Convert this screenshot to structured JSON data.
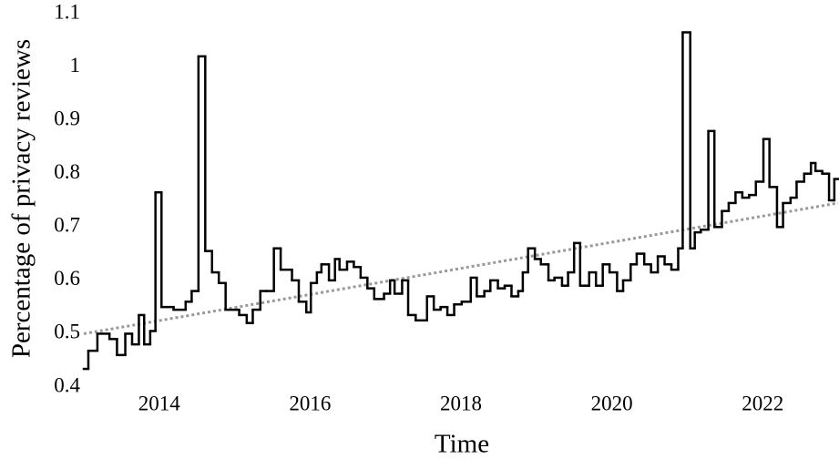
{
  "chart_data": {
    "type": "step",
    "x_label": "Time",
    "y_label": "Percentage of privacy reviews",
    "color": "#000000",
    "x": [
      2013.0,
      2013.06,
      2013.18,
      2013.34,
      2013.44,
      2013.55,
      2013.64,
      2013.73,
      2013.8,
      2013.88,
      2013.95,
      2014.03,
      2014.19,
      2014.35,
      2014.43,
      2014.52,
      2014.61,
      2014.7,
      2014.79,
      2014.88,
      2015.06,
      2015.16,
      2015.24,
      2015.34,
      2015.42,
      2015.52,
      2015.61,
      2015.76,
      2015.85,
      2015.95,
      2016.01,
      2016.09,
      2016.15,
      2016.25,
      2016.33,
      2016.39,
      2016.49,
      2016.58,
      2016.67,
      2016.76,
      2016.85,
      2016.98,
      2017.06,
      2017.12,
      2017.22,
      2017.3,
      2017.4,
      2017.55,
      2017.64,
      2017.73,
      2017.82,
      2017.91,
      2018.01,
      2018.13,
      2018.21,
      2018.31,
      2018.39,
      2018.49,
      2018.58,
      2018.67,
      2018.76,
      2018.82,
      2018.89,
      2018.98,
      2019.06,
      2019.16,
      2019.24,
      2019.34,
      2019.42,
      2019.5,
      2019.58,
      2019.7,
      2019.79,
      2019.88,
      2019.97,
      2020.07,
      2020.15,
      2020.25,
      2020.33,
      2020.43,
      2020.52,
      2020.61,
      2020.7,
      2020.79,
      2020.88,
      2020.94,
      2021.04,
      2021.1,
      2021.18,
      2021.28,
      2021.36,
      2021.46,
      2021.55,
      2021.64,
      2021.73,
      2021.82,
      2021.91,
      2022.01,
      2022.09,
      2022.19,
      2022.27,
      2022.37,
      2022.45,
      2022.55,
      2022.64,
      2022.7,
      2022.79,
      2022.88,
      2022.95
    ],
    "values": [
      0.434,
      0.468,
      0.5,
      0.49,
      0.46,
      0.5,
      0.48,
      0.535,
      0.48,
      0.505,
      0.765,
      0.55,
      0.545,
      0.56,
      0.58,
      1.02,
      0.655,
      0.615,
      0.595,
      0.545,
      0.535,
      0.52,
      0.545,
      0.58,
      0.58,
      0.66,
      0.62,
      0.6,
      0.56,
      0.54,
      0.595,
      0.615,
      0.63,
      0.6,
      0.64,
      0.62,
      0.635,
      0.625,
      0.605,
      0.585,
      0.565,
      0.575,
      0.6,
      0.575,
      0.6,
      0.535,
      0.525,
      0.57,
      0.545,
      0.55,
      0.535,
      0.555,
      0.56,
      0.605,
      0.57,
      0.58,
      0.6,
      0.585,
      0.59,
      0.57,
      0.58,
      0.615,
      0.66,
      0.64,
      0.63,
      0.6,
      0.605,
      0.59,
      0.615,
      0.67,
      0.59,
      0.615,
      0.59,
      0.63,
      0.615,
      0.58,
      0.6,
      0.63,
      0.65,
      0.63,
      0.615,
      0.645,
      0.63,
      0.62,
      0.66,
      1.065,
      0.66,
      0.69,
      0.695,
      0.88,
      0.7,
      0.73,
      0.745,
      0.765,
      0.755,
      0.76,
      0.785,
      0.865,
      0.775,
      0.7,
      0.745,
      0.755,
      0.785,
      0.8,
      0.82,
      0.805,
      0.8,
      0.75,
      0.79
    ],
    "trend_line": {
      "x": [
        2013,
        2023
      ],
      "values": [
        0.5,
        0.745
      ],
      "color": "#999999",
      "style": "dotted"
    },
    "xlim": [
      2013,
      2023
    ],
    "xticks": [
      2014,
      2016,
      2018,
      2020,
      2022
    ],
    "ylim": [
      0.4,
      1.1
    ],
    "yticks": [
      0.4,
      0.5,
      0.6,
      0.7,
      0.8,
      0.9,
      1,
      1.1
    ],
    "grid": false
  }
}
